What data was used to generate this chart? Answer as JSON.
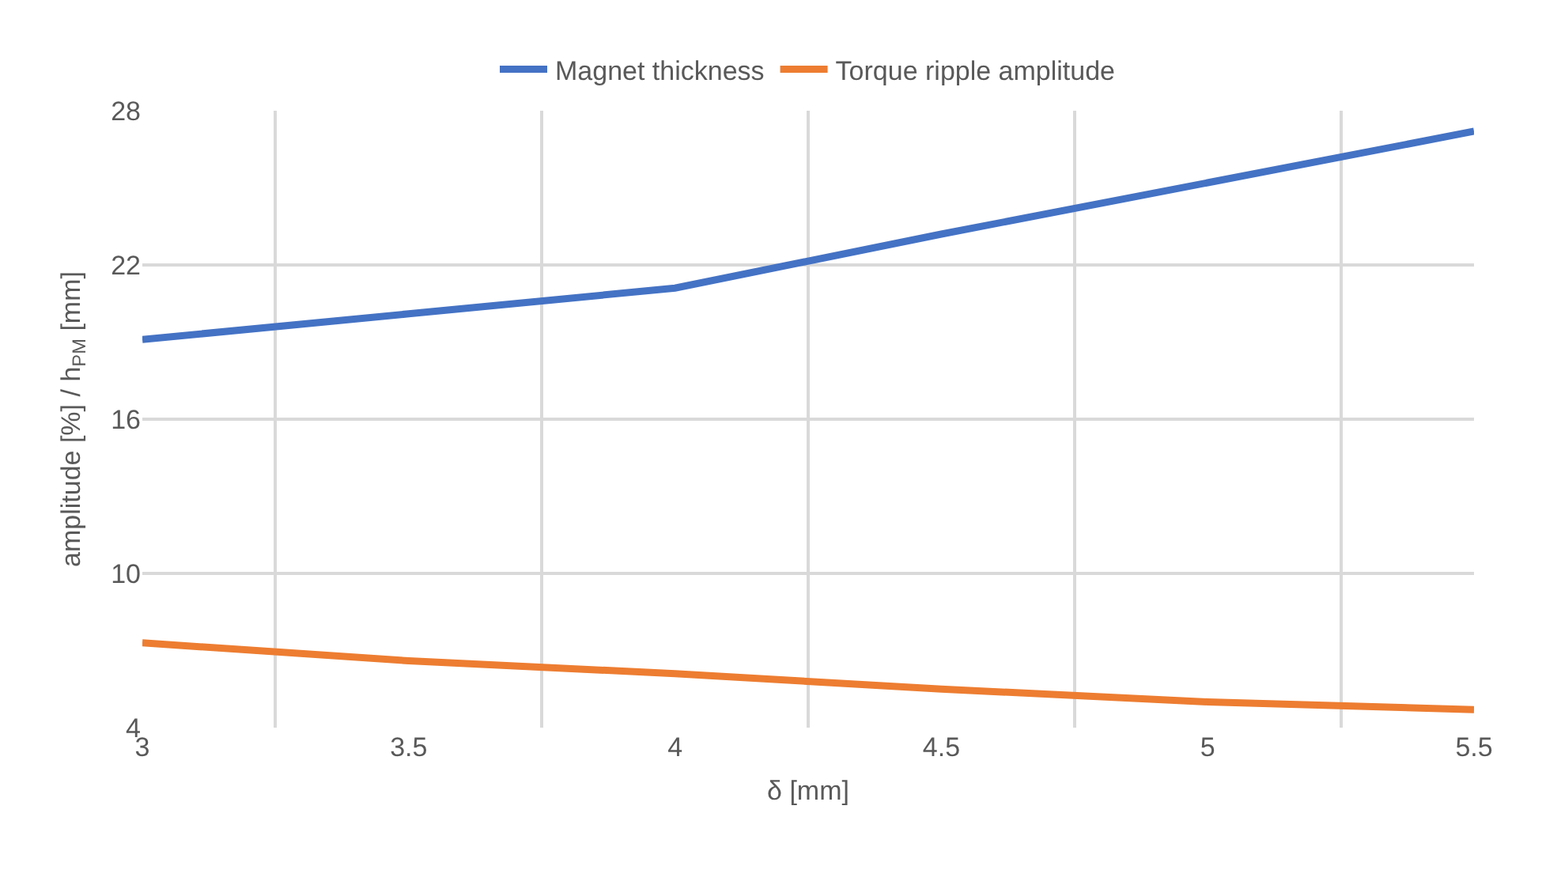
{
  "chart_data": {
    "type": "line",
    "xlabel": "δ [mm]",
    "ylabel": "amplitude [%] / h$_{PM}$ [mm]",
    "categories": [
      "3",
      "3.5",
      "4",
      "4.5",
      "5",
      "5.5"
    ],
    "series": [
      {
        "name": "Magnet thickness",
        "color": "#4472c4",
        "values": [
          19.1,
          20.1,
          21.1,
          23.2,
          25.2,
          27.2
        ]
      },
      {
        "name": "Torque ripple amplitude",
        "color": "#ed7d31",
        "values": [
          7.3,
          6.6,
          6.1,
          5.5,
          5.0,
          4.7
        ]
      }
    ],
    "ylim": [
      4,
      28
    ],
    "yticks": [
      4,
      10,
      16,
      22,
      28
    ],
    "grid": true,
    "legend": "top",
    "marker": "none",
    "line_style": "solid"
  }
}
